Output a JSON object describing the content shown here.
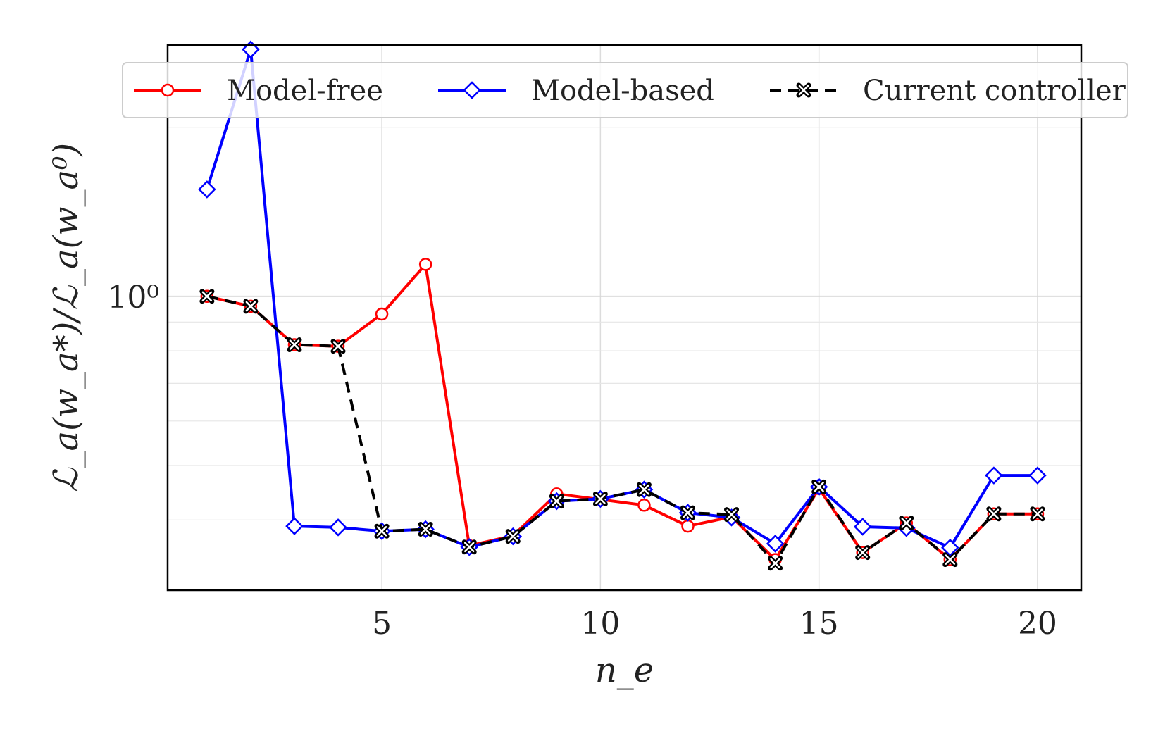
{
  "chart_data": {
    "type": "line",
    "xlabel": "n_e",
    "ylabel": "ℒ_a(w_a*)/ℒ_a(w_a⁰)",
    "yscale": "log",
    "xlim": [
      0.1,
      21
    ],
    "ylim": [
      0.3,
      2.8
    ],
    "x_ticks": [
      5,
      10,
      15,
      20
    ],
    "y_tick_major": [
      {
        "value": 1.0,
        "label": "10⁰"
      }
    ],
    "y_tick_minor": [
      0.4,
      0.5,
      0.6,
      0.7,
      0.8,
      0.9,
      2.0
    ],
    "grid": true,
    "legend_position": "top",
    "x": [
      1,
      2,
      3,
      4,
      5,
      6,
      7,
      8,
      9,
      10,
      11,
      12,
      13,
      14,
      15,
      16,
      17,
      18,
      19,
      20
    ],
    "series": [
      {
        "name": "Model-free",
        "color": "#ff0000",
        "marker": "circle",
        "dash": "solid",
        "values": [
          1.0,
          0.96,
          0.82,
          0.815,
          0.93,
          1.14,
          0.36,
          0.375,
          0.445,
          0.435,
          0.425,
          0.39,
          0.405,
          0.34,
          0.455,
          0.35,
          0.395,
          0.34,
          0.41,
          0.41
        ]
      },
      {
        "name": "Model-based",
        "color": "#0000ff",
        "marker": "diamond",
        "dash": "solid",
        "values": [
          1.55,
          2.75,
          0.39,
          0.388,
          0.382,
          0.385,
          0.358,
          0.374,
          0.432,
          0.436,
          0.453,
          0.412,
          0.404,
          0.363,
          0.458,
          0.389,
          0.387,
          0.357,
          0.48,
          0.48
        ]
      },
      {
        "name": "Current controller",
        "color": "#000000",
        "marker": "x",
        "dash": "dashed",
        "values": [
          1.0,
          0.96,
          0.82,
          0.815,
          0.382,
          0.385,
          0.358,
          0.374,
          0.432,
          0.436,
          0.453,
          0.412,
          0.409,
          0.335,
          0.458,
          0.35,
          0.395,
          0.34,
          0.41,
          0.41
        ]
      }
    ]
  }
}
